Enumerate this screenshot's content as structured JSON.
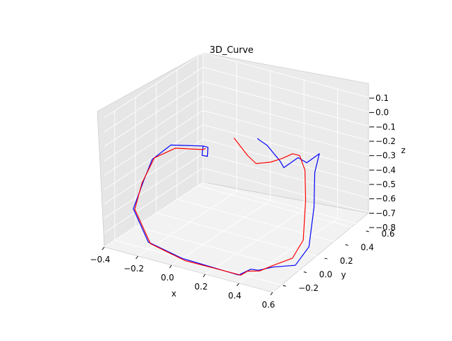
{
  "chart_data": {
    "type": "line",
    "title": "3D_Curve",
    "xlabel": "x",
    "ylabel": "y",
    "zlabel": "z",
    "xlim": [
      -0.4,
      0.6
    ],
    "ylim": [
      -0.3,
      0.65
    ],
    "zlim": [
      -0.8,
      0.1
    ],
    "x_ticks": [
      "−0.4",
      "−0.2",
      "0.0",
      "0.2",
      "0.4",
      "0.6"
    ],
    "y_ticks": [
      "−0.2",
      "0.0",
      "0.2",
      "0.4",
      "0.6"
    ],
    "z_ticks": [
      "0.1",
      "0.0",
      "−0.1",
      "−0.2",
      "−0.3",
      "−0.4",
      "−0.5",
      "−0.6",
      "−0.7",
      "−0.8"
    ],
    "grid": true,
    "series": [
      {
        "color": "#0000ff",
        "points": [
          [
            0.12,
            0.33,
            -0.18
          ],
          [
            0.16,
            0.36,
            -0.23
          ],
          [
            0.23,
            0.37,
            -0.32
          ],
          [
            0.29,
            0.31,
            -0.32
          ],
          [
            0.35,
            0.35,
            -0.25
          ],
          [
            0.42,
            0.32,
            -0.25
          ],
          [
            0.47,
            0.36,
            -0.19
          ],
          [
            0.48,
            0.3,
            -0.29
          ],
          [
            0.55,
            0.18,
            -0.45
          ],
          [
            0.6,
            0.05,
            -0.65
          ],
          [
            0.55,
            0.0,
            -0.77
          ],
          [
            0.45,
            -0.05,
            -0.79
          ],
          [
            0.38,
            -0.08,
            -0.82
          ],
          [
            0.36,
            -0.12,
            -0.8
          ],
          [
            0.3,
            -0.14,
            -0.85
          ],
          [
            0.0,
            -0.2,
            -0.8
          ],
          [
            -0.2,
            -0.2,
            -0.75
          ],
          [
            -0.32,
            -0.15,
            -0.58
          ],
          [
            -0.32,
            -0.05,
            -0.43
          ],
          [
            -0.3,
            0.0,
            -0.3
          ],
          [
            -0.22,
            0.05,
            -0.2
          ],
          [
            -0.06,
            0.1,
            -0.18
          ],
          [
            -0.05,
            0.13,
            -0.2
          ],
          [
            -0.04,
            0.11,
            -0.25
          ],
          [
            -0.06,
            0.09,
            -0.24
          ],
          [
            -0.06,
            0.1,
            -0.18
          ]
        ]
      },
      {
        "color": "#ff0000",
        "points": [
          [
            0.0,
            0.3,
            -0.2
          ],
          [
            0.05,
            0.35,
            -0.33
          ],
          [
            0.1,
            0.35,
            -0.37
          ],
          [
            0.18,
            0.36,
            -0.34
          ],
          [
            0.26,
            0.34,
            -0.28
          ],
          [
            0.33,
            0.33,
            -0.22
          ],
          [
            0.39,
            0.3,
            -0.2
          ],
          [
            0.44,
            0.27,
            -0.27
          ],
          [
            0.5,
            0.18,
            -0.42
          ],
          [
            0.56,
            0.06,
            -0.62
          ],
          [
            0.52,
            0.02,
            -0.74
          ],
          [
            0.45,
            -0.04,
            -0.78
          ],
          [
            0.38,
            -0.07,
            -0.83
          ],
          [
            0.34,
            -0.12,
            -0.82
          ],
          [
            0.3,
            -0.12,
            -0.86
          ],
          [
            0.0,
            -0.17,
            -0.83
          ],
          [
            -0.2,
            -0.18,
            -0.77
          ],
          [
            -0.33,
            -0.12,
            -0.6
          ],
          [
            -0.33,
            -0.05,
            -0.45
          ],
          [
            -0.3,
            0.02,
            -0.3
          ],
          [
            -0.2,
            0.06,
            -0.22
          ],
          [
            -0.06,
            0.09,
            -0.2
          ],
          [
            -0.05,
            0.11,
            -0.2
          ]
        ]
      }
    ]
  }
}
